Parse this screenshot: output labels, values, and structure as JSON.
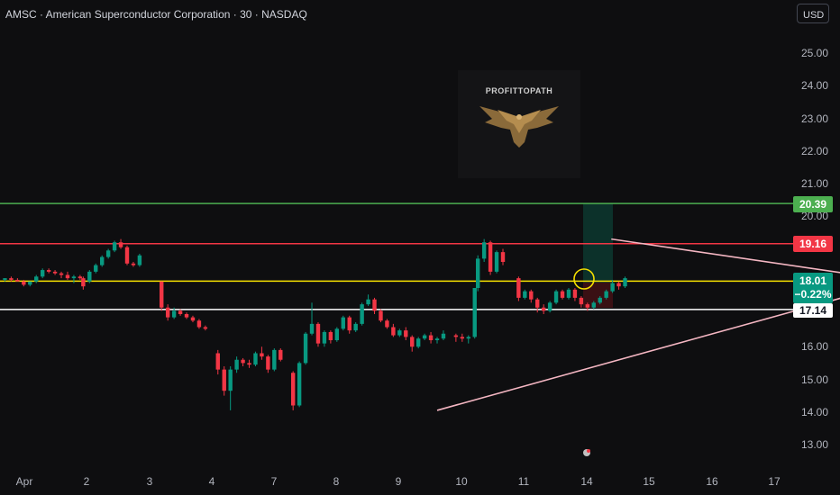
{
  "header": {
    "symbol_title": "AMSC · American Superconductor Corporation · 30 · NASDAQ",
    "currency_label": "USD"
  },
  "watermark": {
    "brand": "PROFITTOPATH",
    "icon": "eagle-logo-icon"
  },
  "price_axis": {
    "ticks": [
      "25.00",
      "24.00",
      "23.00",
      "22.00",
      "21.00",
      "20.00",
      "16.00",
      "15.00",
      "14.00",
      "13.00"
    ]
  },
  "time_axis": {
    "ticks": [
      "Apr",
      "2",
      "3",
      "4",
      "7",
      "8",
      "9",
      "10",
      "11",
      "14",
      "15",
      "16",
      "17"
    ]
  },
  "levels": {
    "take_profit": {
      "label": "20.39",
      "color": "#4caf50"
    },
    "resistance": {
      "label": "19.16",
      "color": "#f23645"
    },
    "current": {
      "label": "18.01",
      "change": "−0.22%",
      "color": "#089981"
    },
    "support": {
      "label": "17.14",
      "color": "#ffffff"
    }
  },
  "colors": {
    "up": "#089981",
    "down": "#f23645",
    "triangle": "#f4b6c2",
    "highlight": "#f5e000"
  },
  "chart_data": {
    "type": "candlestick",
    "symbol": "AMSC",
    "interval": "30",
    "ylim": [
      12.6,
      25.8
    ],
    "x_categories": [
      "Apr",
      "2",
      "3",
      "4",
      "7",
      "8",
      "9",
      "10",
      "11",
      "14",
      "15",
      "16",
      "17"
    ],
    "horizontal_levels": [
      20.39,
      19.16,
      18.01,
      17.14
    ],
    "triangle_pattern": {
      "upper": [
        [
          9.73,
          19.3
        ],
        [
          14.35,
          18.0
        ]
      ],
      "lower": [
        [
          6.95,
          14.05
        ],
        [
          14.35,
          18.0
        ]
      ]
    },
    "candles": [
      [
        0.05,
        18.05,
        18.1,
        18.0,
        18.1
      ],
      [
        0.15,
        18.1,
        18.15,
        18.0,
        18.05
      ],
      [
        0.25,
        18.05,
        18.1,
        18.0,
        18.0
      ],
      [
        0.35,
        18.0,
        18.05,
        17.85,
        17.9
      ],
      [
        0.45,
        17.9,
        18.0,
        17.85,
        18.0
      ],
      [
        0.55,
        18.0,
        18.2,
        17.95,
        18.15
      ],
      [
        0.65,
        18.15,
        18.4,
        18.1,
        18.35
      ],
      [
        0.75,
        18.35,
        18.4,
        18.25,
        18.3
      ],
      [
        0.85,
        18.3,
        18.35,
        18.2,
        18.25
      ],
      [
        0.95,
        18.25,
        18.3,
        18.1,
        18.2
      ],
      [
        1.05,
        18.2,
        18.3,
        18.05,
        18.1
      ],
      [
        1.15,
        18.1,
        18.2,
        17.95,
        18.15
      ],
      [
        1.25,
        18.15,
        18.2,
        18.05,
        18.1
      ],
      [
        1.3,
        18.1,
        18.15,
        17.75,
        17.85
      ],
      [
        1.4,
        18.0,
        18.35,
        17.95,
        18.3
      ],
      [
        1.5,
        18.3,
        18.55,
        18.25,
        18.5
      ],
      [
        1.6,
        18.5,
        18.8,
        18.45,
        18.75
      ],
      [
        1.7,
        18.75,
        19.0,
        18.7,
        18.95
      ],
      [
        1.8,
        18.95,
        19.25,
        18.9,
        19.2
      ],
      [
        1.9,
        19.2,
        19.3,
        19.0,
        19.05
      ],
      [
        2.0,
        19.05,
        19.1,
        18.5,
        18.55
      ],
      [
        2.1,
        18.55,
        18.6,
        18.45,
        18.5
      ],
      [
        2.2,
        18.5,
        18.85,
        18.45,
        18.8
      ],
      [
        2.55,
        18.0,
        18.0,
        17.1,
        17.2
      ],
      [
        2.65,
        17.2,
        17.3,
        16.8,
        16.9
      ],
      [
        2.75,
        16.9,
        17.2,
        16.85,
        17.1
      ],
      [
        2.85,
        17.1,
        17.15,
        16.95,
        17.0
      ],
      [
        2.95,
        17.0,
        17.05,
        16.85,
        16.9
      ],
      [
        3.05,
        16.9,
        16.95,
        16.75,
        16.8
      ],
      [
        3.15,
        16.8,
        16.85,
        16.55,
        16.6
      ],
      [
        3.25,
        16.6,
        16.65,
        16.5,
        16.55
      ],
      [
        3.45,
        15.8,
        15.9,
        15.15,
        15.3
      ],
      [
        3.55,
        15.3,
        15.4,
        14.5,
        14.65
      ],
      [
        3.65,
        14.65,
        15.4,
        14.05,
        15.3
      ],
      [
        3.75,
        15.3,
        15.7,
        15.2,
        15.6
      ],
      [
        3.85,
        15.6,
        15.65,
        15.4,
        15.5
      ],
      [
        3.95,
        15.5,
        15.6,
        15.35,
        15.45
      ],
      [
        4.05,
        15.45,
        15.85,
        15.4,
        15.8
      ],
      [
        4.15,
        15.8,
        16.0,
        15.6,
        15.7
      ],
      [
        4.25,
        15.7,
        15.75,
        15.2,
        15.3
      ],
      [
        4.35,
        15.3,
        15.95,
        15.25,
        15.9
      ],
      [
        4.45,
        15.9,
        15.95,
        15.55,
        15.6
      ],
      [
        4.65,
        15.2,
        15.25,
        14.05,
        14.2
      ],
      [
        4.75,
        14.2,
        15.55,
        14.15,
        15.5
      ],
      [
        4.85,
        15.5,
        16.45,
        15.45,
        16.4
      ],
      [
        4.95,
        16.4,
        17.35,
        16.35,
        16.7
      ],
      [
        5.05,
        16.7,
        16.75,
        16.0,
        16.1
      ],
      [
        5.15,
        16.1,
        16.5,
        16.0,
        16.45
      ],
      [
        5.25,
        16.45,
        16.5,
        16.1,
        16.2
      ],
      [
        5.35,
        16.2,
        16.6,
        16.15,
        16.55
      ],
      [
        5.45,
        16.55,
        16.95,
        16.5,
        16.9
      ],
      [
        5.55,
        16.9,
        16.95,
        16.4,
        16.5
      ],
      [
        5.65,
        16.5,
        16.75,
        16.45,
        16.7
      ],
      [
        5.75,
        16.7,
        17.35,
        16.65,
        17.3
      ],
      [
        5.85,
        17.3,
        17.6,
        17.25,
        17.45
      ],
      [
        5.95,
        17.45,
        17.5,
        17.0,
        17.1
      ],
      [
        6.05,
        17.1,
        17.15,
        16.75,
        16.8
      ],
      [
        6.15,
        16.8,
        16.85,
        16.55,
        16.6
      ],
      [
        6.25,
        16.6,
        16.7,
        16.3,
        16.35
      ],
      [
        6.35,
        16.35,
        16.55,
        16.3,
        16.5
      ],
      [
        6.45,
        16.5,
        16.6,
        16.2,
        16.3
      ],
      [
        6.55,
        16.3,
        16.35,
        15.85,
        16.0
      ],
      [
        6.65,
        16.0,
        16.3,
        15.95,
        16.25
      ],
      [
        6.75,
        16.25,
        16.4,
        16.2,
        16.35
      ],
      [
        6.85,
        16.35,
        16.45,
        16.1,
        16.2
      ],
      [
        6.95,
        16.2,
        16.3,
        16.1,
        16.25
      ],
      [
        7.05,
        16.25,
        16.5,
        16.2,
        16.4
      ],
      [
        7.25,
        16.35,
        16.4,
        16.15,
        16.3
      ],
      [
        7.35,
        16.3,
        16.4,
        16.15,
        16.25
      ],
      [
        7.45,
        16.25,
        16.35,
        16.1,
        16.3
      ],
      [
        7.55,
        16.3,
        17.8,
        16.25,
        17.8
      ],
      [
        7.6,
        17.8,
        18.8,
        17.7,
        18.7
      ],
      [
        7.7,
        18.7,
        19.3,
        18.6,
        19.2
      ],
      [
        7.8,
        19.2,
        19.25,
        18.2,
        18.3
      ],
      [
        7.9,
        18.3,
        18.95,
        18.25,
        18.9
      ],
      [
        8.0,
        18.9,
        19.0,
        18.5,
        18.6
      ],
      [
        8.25,
        18.1,
        18.15,
        17.4,
        17.5
      ],
      [
        8.35,
        17.5,
        17.75,
        17.45,
        17.7
      ],
      [
        8.45,
        17.7,
        17.75,
        17.35,
        17.45
      ],
      [
        8.55,
        17.45,
        17.5,
        17.05,
        17.2
      ],
      [
        8.65,
        17.2,
        17.3,
        17.0,
        17.1
      ],
      [
        8.75,
        17.1,
        17.4,
        17.05,
        17.35
      ],
      [
        8.85,
        17.35,
        17.75,
        17.3,
        17.7
      ],
      [
        8.95,
        17.7,
        17.75,
        17.45,
        17.5
      ],
      [
        9.05,
        17.5,
        17.8,
        17.45,
        17.75
      ],
      [
        9.15,
        17.75,
        17.8,
        17.4,
        17.5
      ],
      [
        9.25,
        17.5,
        17.55,
        17.2,
        17.3
      ],
      [
        9.35,
        17.3,
        17.35,
        17.1,
        17.2
      ],
      [
        9.45,
        17.2,
        17.4,
        17.15,
        17.35
      ],
      [
        9.55,
        17.35,
        17.55,
        17.3,
        17.5
      ],
      [
        9.65,
        17.5,
        17.75,
        17.45,
        17.7
      ],
      [
        9.75,
        17.7,
        18.05,
        17.65,
        17.95
      ],
      [
        9.85,
        17.95,
        18.0,
        17.75,
        17.85
      ],
      [
        9.95,
        17.85,
        18.15,
        17.8,
        18.1
      ]
    ]
  }
}
